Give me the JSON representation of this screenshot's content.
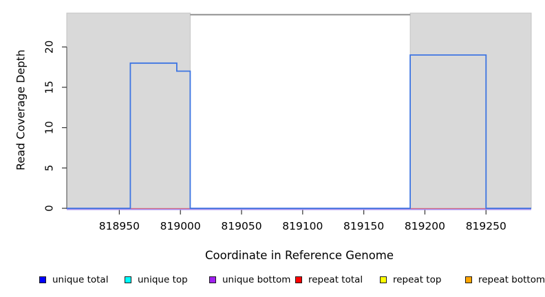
{
  "chart_data": {
    "type": "line",
    "subtype": "step-coverage-plot",
    "title": "",
    "xlabel": "Coordinate in Reference Genome",
    "ylabel": "Read Coverage Depth",
    "xlim": [
      818907,
      819287
    ],
    "ylim": [
      0,
      24.2
    ],
    "x_ticks": [
      818950,
      819000,
      819050,
      819100,
      819150,
      819200,
      819250
    ],
    "y_ticks": [
      0,
      5,
      10,
      15,
      20
    ],
    "grid": false,
    "legend_position": "bottom",
    "plot_bg": "#ffffff",
    "flank_fill": "#d9d9d9",
    "flank_edge": "#c3c3c3",
    "shaded_regions": [
      {
        "name": "left flank",
        "from": 818907,
        "to": 819008
      },
      {
        "name": "right flank",
        "from": 819188,
        "to": 819287
      }
    ],
    "top_marker_line": {
      "from": 819008,
      "to": 819188,
      "depth": 24,
      "color": "#8e8e8e"
    },
    "series": [
      {
        "name": "unique total",
        "swatch": "#0000ff",
        "line": "#3c74e2",
        "points": [
          [
            818907,
            0
          ],
          [
            818959,
            0
          ],
          [
            818959,
            18
          ],
          [
            818997,
            18
          ],
          [
            818997,
            17
          ],
          [
            819008,
            17
          ],
          [
            819008,
            0
          ],
          [
            819188,
            0
          ],
          [
            819188,
            19
          ],
          [
            819250,
            19
          ],
          [
            819250,
            0
          ],
          [
            819287,
            0
          ]
        ]
      },
      {
        "name": "unique top",
        "swatch": "#00ffff",
        "line": "#00e0e0",
        "points": [
          [
            818907,
            0
          ],
          [
            819287,
            0
          ]
        ]
      },
      {
        "name": "unique bottom",
        "swatch": "#a020f0",
        "line": "#a791ef",
        "points": [
          [
            818907,
            0
          ],
          [
            819287,
            0
          ]
        ]
      },
      {
        "name": "repeat total",
        "swatch": "#ff0000",
        "line": "#e05360",
        "points": [
          [
            818907,
            0
          ],
          [
            819287,
            0
          ]
        ]
      },
      {
        "name": "repeat top",
        "swatch": "#ffff00",
        "line": "#f0f000",
        "points": [
          [
            818907,
            0
          ],
          [
            819287,
            0
          ]
        ]
      },
      {
        "name": "repeat bottom",
        "swatch": "#ffa500",
        "line": "#f0a000",
        "points": [
          [
            818907,
            0
          ],
          [
            819287,
            0
          ]
        ]
      }
    ],
    "legend": [
      {
        "label": "unique total",
        "color": "#0000ff"
      },
      {
        "label": "unique top",
        "color": "#00ffff"
      },
      {
        "label": "unique bottom",
        "color": "#a020f0"
      },
      {
        "label": "repeat total",
        "color": "#ff0000"
      },
      {
        "label": "repeat top",
        "color": "#ffff00"
      },
      {
        "label": "repeat bottom",
        "color": "#ffa500"
      }
    ]
  }
}
